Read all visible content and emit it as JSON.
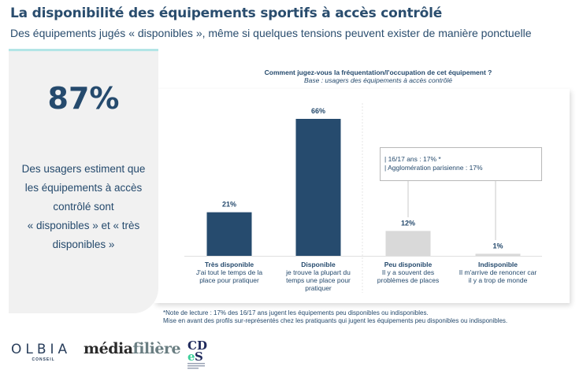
{
  "header": {
    "title": "La disponibilité des équipements sportifs à accès contrôlé",
    "subtitle": "Des équipements jugés « disponibles », même si quelques tensions peuvent exister de manière ponctuelle"
  },
  "key_stat": {
    "value": "87%",
    "lines": [
      "Des usagers estiment que",
      "les équipements à accès",
      "contrôlé sont",
      "« disponibles » et « très",
      "disponibles »"
    ]
  },
  "colors": {
    "accent_teal": "#b3e5e6",
    "bar_dark": "#264b6e",
    "bar_light": "#d9d9d9",
    "text_navy": "#254a6d"
  },
  "chart_data": {
    "type": "bar",
    "title": "Comment jugez-vous la fréquentation/l'occupation de cet équipement ?",
    "subtitle": "Base : usagers des équipements à accès contrôlé",
    "categories": [
      {
        "name": "Très disponible",
        "desc": [
          "J'ai tout le temps de la",
          "place pour pratiquer"
        ]
      },
      {
        "name": "Disponible",
        "desc": [
          "je trouve la plupart du",
          "temps une place pour",
          "pratiquer"
        ]
      },
      {
        "name": "Peu disponible",
        "desc": [
          "Il y a souvent des",
          "problèmes de places"
        ]
      },
      {
        "name": "Indisponible",
        "desc": [
          "Il m'arrive de renoncer car",
          "il y a trop de monde"
        ]
      }
    ],
    "values": [
      21,
      66,
      12,
      1
    ],
    "value_labels": [
      "21%",
      "66%",
      "12%",
      "1%"
    ],
    "bar_colors": [
      "#264b6e",
      "#264b6e",
      "#d9d9d9",
      "#d9d9d9"
    ],
    "ylim": [
      0,
      66
    ],
    "xlabel": "",
    "ylabel": "",
    "grid": false,
    "legend": "none",
    "annotation": {
      "lines": [
        "| 16/17 ans : 17% *",
        "| Agglomération parisienne : 17%"
      ],
      "applies_to": [
        "Peu disponible",
        "Indisponible"
      ]
    }
  },
  "footnote": {
    "line1": "*Note de lecture : 17% des 16/17 ans jugent les équipements peu disponibles ou indisponibles.",
    "line2": "Mise en avant des profils sur-représentés chez les pratiquants qui jugent les équipements peu disponibles ou indisponibles."
  },
  "logos": {
    "olbia": {
      "main": "OLBIA",
      "sub": "CONSEIL"
    },
    "mediafiliere": {
      "part1": "média",
      "part2": "filière"
    },
    "cdes": {
      "text": "CDES"
    }
  }
}
